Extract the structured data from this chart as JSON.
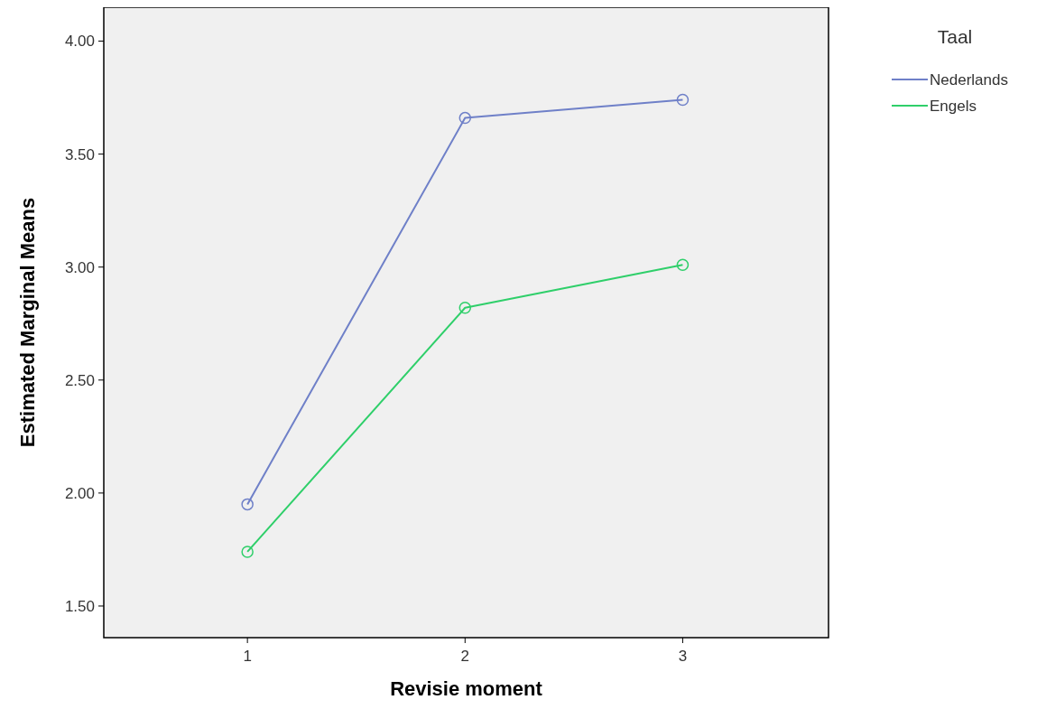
{
  "chart_data": {
    "type": "line",
    "xlabel": "Revisie moment",
    "ylabel": "Estimated Marginal Means",
    "legend_title": "Taal",
    "legend": "top right",
    "marker": "circle",
    "line_style": "solid",
    "grid": false,
    "x": [
      1,
      2,
      3
    ],
    "xlim": [
      0.34,
      3.67
    ],
    "xticks": [
      1,
      2,
      3
    ],
    "ylim": [
      1.36,
      4.15
    ],
    "yticks": [
      {
        "value": 1.5,
        "label": "1.50"
      },
      {
        "value": 2,
        "label": "2.00"
      },
      {
        "value": 2.5,
        "label": "2.50"
      },
      {
        "value": 3,
        "label": "3.00"
      },
      {
        "value": 3.5,
        "label": "3.50"
      },
      {
        "value": 4,
        "label": "4.00"
      }
    ],
    "series": [
      {
        "name": "Nederlands",
        "color": "#6f80c8",
        "values": [
          1.95,
          3.66,
          3.74
        ]
      },
      {
        "name": "Engels",
        "color": "#2fcf6a",
        "values": [
          1.74,
          2.82,
          3.01
        ]
      }
    ]
  }
}
